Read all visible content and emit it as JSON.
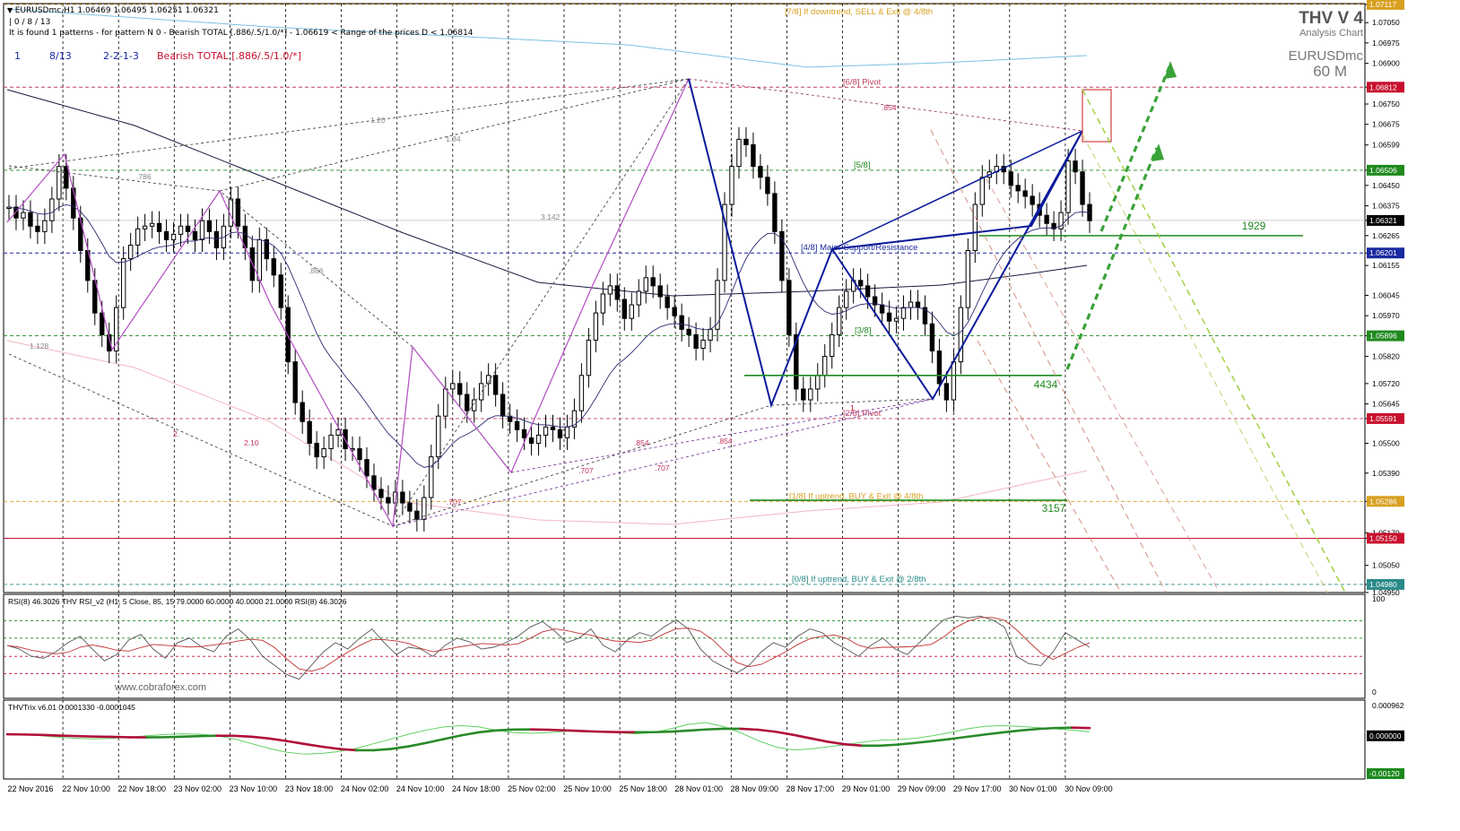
{
  "window": {
    "header_line": "EURUSDmc,H1  1.06469 1.06495 1.06251 1.06321",
    "status_line": "| 0 / 8 / 13",
    "pattern_line": "It is found 1 patterns  -  for pattern N 0 - Bearish TOTAL [.886/.5/1.0/*] - 1.06619 < Range of the prices D < 1.06814",
    "pattern_index": "1",
    "pattern_count": "8/13",
    "pattern_seq": "2-2-1-3",
    "pattern_name": "Bearish TOTAL [.886/.5/1.0/*]"
  },
  "brand": {
    "title": "THV V 4",
    "subtitle": "Analysis Chart",
    "symbol": "EURUSDmc",
    "period": "60 M"
  },
  "colors": {
    "bull_candle": "#ffffff",
    "bear_candle": "#000000",
    "pattern_blue": "#0a1a9a",
    "pattern_magenta": "#b44cc4",
    "support_green": "#1e8a1e",
    "arrow_green": "#3aa23a",
    "resistance_red": "#c8102e",
    "rsi_red": "#c03030",
    "trix_green": "#2a8a2a",
    "trix_red": "#b0103a"
  },
  "chart_data": [
    {
      "type": "candlestick",
      "symbol": "EURUSDmc",
      "timeframe": "H1",
      "ylim": [
        1.0495,
        1.0712
      ],
      "y_tick_labels": [
        "1.07117",
        "1.07050",
        "1.06975",
        "1.06900",
        "1.06812",
        "1.06750",
        "1.06675",
        "1.06599",
        "1.06506",
        "1.06450",
        "1.06375",
        "1.06321",
        "1.06265",
        "1.06201",
        "1.06155",
        "1.06045",
        "1.05970",
        "1.05896",
        "1.05820",
        "1.05720",
        "1.05645",
        "1.05591",
        "1.05500",
        "1.05390",
        "1.05286",
        "1.05170",
        "1.05150",
        "1.05050",
        "1.04980",
        "1.04950"
      ],
      "highlighted_price_labels": [
        {
          "label": "1.07117",
          "color": "#d8a020"
        },
        {
          "label": "1.06812",
          "color": "#c8102e"
        },
        {
          "label": "1.06506",
          "color": "#1e8a1e"
        },
        {
          "label": "1.06321",
          "color": "#000000"
        },
        {
          "label": "1.06201",
          "color": "#1a2aa0"
        },
        {
          "label": "1.05896",
          "color": "#1e8a1e"
        },
        {
          "label": "1.05591",
          "color": "#c8102e"
        },
        {
          "label": "1.05286",
          "color": "#d8a020"
        },
        {
          "label": "1.05150",
          "color": "#c8102e"
        },
        {
          "label": "1.04980",
          "color": "#2a8a8a"
        }
      ],
      "x_tick_labels": [
        "22 Nov 2016",
        "22 Nov 10:00",
        "22 Nov 18:00",
        "23 Nov 02:00",
        "23 Nov 10:00",
        "23 Nov 18:00",
        "24 Nov 02:00",
        "24 Nov 10:00",
        "24 Nov 18:00",
        "25 Nov 02:00",
        "25 Nov 10:00",
        "25 Nov 18:00",
        "28 Nov 01:00",
        "28 Nov 09:00",
        "28 Nov 17:00",
        "29 Nov 01:00",
        "29 Nov 09:00",
        "29 Nov 17:00",
        "30 Nov 01:00",
        "30 Nov 09:00"
      ],
      "close_path": [
        1.0637,
        1.0633,
        1.0635,
        1.063,
        1.0628,
        1.0632,
        1.064,
        1.0652,
        1.0644,
        1.0633,
        1.0621,
        1.061,
        1.0598,
        1.059,
        1.0584,
        1.06,
        1.0618,
        1.0623,
        1.0629,
        1.063,
        1.0631,
        1.0628,
        1.0625,
        1.0627,
        1.063,
        1.0628,
        1.0625,
        1.0632,
        1.0628,
        1.0622,
        1.063,
        1.064,
        1.063,
        1.0622,
        1.061,
        1.0625,
        1.0618,
        1.0612,
        1.06,
        1.058,
        1.0565,
        1.0558,
        1.055,
        1.0545,
        1.0548,
        1.0553,
        1.0555,
        1.0548,
        1.0548,
        1.0544,
        1.0538,
        1.0533,
        1.053,
        1.0528,
        1.0532,
        1.0528,
        1.0525,
        1.0522,
        1.053,
        1.0545,
        1.056,
        1.057,
        1.0572,
        1.0568,
        1.0562,
        1.0566,
        1.0572,
        1.0575,
        1.0568,
        1.056,
        1.0558,
        1.0555,
        1.0552,
        1.055,
        1.0553,
        1.0556,
        1.0555,
        1.0552,
        1.0556,
        1.0562,
        1.0575,
        1.0588,
        1.0598,
        1.0605,
        1.0608,
        1.0603,
        1.0596,
        1.0601,
        1.0606,
        1.0611,
        1.0608,
        1.0604,
        1.06,
        1.0597,
        1.0592,
        1.059,
        1.0585,
        1.0588,
        1.0592,
        1.061,
        1.0638,
        1.0652,
        1.0662,
        1.066,
        1.0652,
        1.0648,
        1.0642,
        1.0628,
        1.061,
        1.059,
        1.057,
        1.0566,
        1.057,
        1.0575,
        1.0582,
        1.059,
        1.06,
        1.0606,
        1.061,
        1.0608,
        1.0604,
        1.0601,
        1.0598,
        1.0595,
        1.0596,
        1.06,
        1.0602,
        1.06,
        1.0594,
        1.0584,
        1.0572,
        1.0566,
        1.058,
        1.06,
        1.0621,
        1.0638,
        1.0648,
        1.065,
        1.0652,
        1.065,
        1.0645,
        1.0643,
        1.0641,
        1.0638,
        1.0634,
        1.0631,
        1.0629,
        1.0635,
        1.0654,
        1.065,
        1.0638,
        1.0632
      ],
      "horizontal_levels": [
        {
          "label": "[7/8] If downtrend, SELL & Exit @ 4/8th",
          "price": 1.07117,
          "color": "#d8a020"
        },
        {
          "label": "[6/8] Pivot",
          "price": 1.06812,
          "color": "#c04060"
        },
        {
          "label": "[5/8]",
          "price": 1.06506,
          "color": "#1e8a1e"
        },
        {
          "label": "[4/8] Major Support/Resistance",
          "price": 1.06201,
          "color": "#1a2aa0"
        },
        {
          "label": "[3/8]",
          "price": 1.05896,
          "color": "#1e8a1e"
        },
        {
          "label": "[2/8] Pivot",
          "price": 1.05591,
          "color": "#c04060"
        },
        {
          "label": "[1/8] If uptrend, BUY & Exit @ 4/8th",
          "price": 1.05286,
          "color": "#d8a020"
        },
        {
          "label": "[0/8] If uptrend, BUY & Exit @ 2/8th",
          "price": 1.0498,
          "color": "#2a8a8a"
        }
      ],
      "support_lines": [
        {
          "label": "1929",
          "price": 1.06265
        },
        {
          "label": "4434",
          "price": 1.0575
        },
        {
          "label": "3157",
          "price": 1.0529
        }
      ],
      "fib_labels": [
        "1.20",
        "1.34",
        ".786",
        "3.142",
        ".886",
        "1.128",
        "2.",
        "2.10",
        ".707",
        ".707",
        ".707",
        ".854",
        ".854",
        ".854",
        "1"
      ],
      "annotations": [
        "www.cobraforex.com"
      ]
    },
    {
      "type": "line",
      "title": "RSI(8) 46.3026   THV RSI_v2  (H1, 5   Close,  85,  15 79.0000 60.0000 40.0000 21.0000  RSI(8) 46.3026",
      "y_tick_labels": [
        "100",
        "0"
      ],
      "ylim": [
        0,
        100
      ],
      "levels": [
        79,
        60,
        40,
        21
      ],
      "series": [
        {
          "values": [
            52,
            48,
            40,
            38,
            45,
            55,
            62,
            48,
            35,
            42,
            58,
            64,
            48,
            38,
            55,
            60,
            50,
            45,
            62,
            70,
            58,
            40,
            30,
            20,
            15,
            30,
            45,
            55,
            48,
            60,
            70,
            55,
            42,
            50,
            48,
            40,
            52,
            60,
            56,
            48,
            50,
            55,
            62,
            72,
            78,
            68,
            55,
            60,
            70,
            52,
            45,
            58,
            66,
            62,
            72,
            80,
            70,
            48,
            35,
            28,
            22,
            30,
            45,
            55,
            50,
            62,
            70,
            66,
            55,
            48,
            40,
            52,
            60,
            48,
            42,
            55,
            68,
            80,
            84,
            82,
            84,
            80,
            72,
            40,
            32,
            30,
            45,
            66,
            58,
            50
          ]
        }
      ]
    },
    {
      "type": "line",
      "title": "THVTrix v6.01 0.0001330 -0.0001045",
      "y_tick_labels": [
        "0.000962",
        "0.000000",
        "-0.00120"
      ],
      "ylim": [
        -0.0012,
        0.00096
      ],
      "series": [
        {
          "values": [
            5e-05,
            3e-05,
            0.0,
            -5e-05,
            -8e-05,
            -0.0001,
            -8e-05,
            -5e-05,
            0.0,
            4e-05,
            6e-05,
            5e-05,
            0.0,
            -0.0001,
            -0.00025,
            -0.0004,
            -0.00052,
            -0.00058,
            -0.00056,
            -0.0005,
            -0.0004,
            -0.00025,
            -0.0001,
            5e-05,
            0.00018,
            0.00028,
            0.00032,
            0.00028,
            0.00018,
            0.0001,
            8e-05,
            0.0001,
            0.00014,
            0.00016,
            0.00014,
            0.0001,
            6e-05,
            0.0001,
            0.00022,
            0.00036,
            0.00042,
            0.0003,
            0.0001,
            -0.00015,
            -0.00035,
            -0.00045,
            -0.00042,
            -0.00035,
            -0.00028,
            -0.0002,
            -0.00014,
            -0.00012,
            -8e-05,
            0.0,
            0.0001,
            0.00022,
            0.0003,
            0.00032,
            0.0003,
            0.00026,
            0.00022,
            0.00018,
            0.00013
          ]
        }
      ]
    }
  ]
}
